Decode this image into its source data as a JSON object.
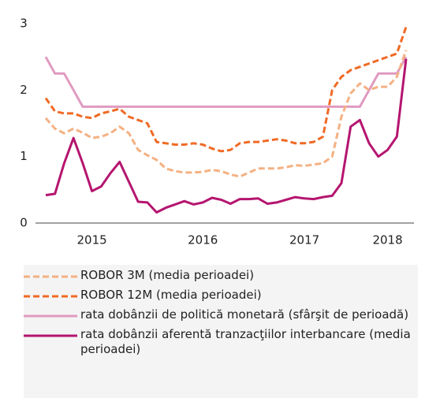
{
  "chart_data": {
    "type": "line",
    "categories": [
      null,
      null,
      null,
      null,
      null,
      "2015",
      null,
      null,
      null,
      null,
      null,
      null,
      null,
      null,
      null,
      null,
      null,
      "2016",
      null,
      null,
      null,
      null,
      null,
      null,
      null,
      null,
      null,
      null,
      "2017",
      null,
      null,
      null,
      null,
      null,
      null,
      null,
      null,
      "2018",
      null,
      null
    ],
    "ylim": [
      0,
      3
    ],
    "yticks": [
      0,
      1,
      2,
      3
    ],
    "grid": false,
    "series": [
      {
        "name": "ROBOR 3M (media perioadei)",
        "color": "#f4b183",
        "dashed": true,
        "values": [
          1.58,
          1.42,
          1.35,
          1.42,
          1.36,
          1.28,
          1.3,
          1.35,
          1.45,
          1.35,
          1.1,
          1.02,
          0.95,
          0.82,
          0.78,
          0.76,
          0.76,
          0.77,
          0.8,
          0.78,
          0.73,
          0.7,
          0.76,
          0.82,
          0.82,
          0.82,
          0.84,
          0.87,
          0.86,
          0.88,
          0.9,
          1.0,
          1.6,
          1.95,
          2.1,
          2.0,
          2.05,
          2.05,
          2.2,
          2.6
        ]
      },
      {
        "name": "ROBOR 12M (media perioadei)",
        "color": "#f06a25",
        "dashed": true,
        "values": [
          1.88,
          1.68,
          1.65,
          1.65,
          1.6,
          1.58,
          1.65,
          1.68,
          1.72,
          1.6,
          1.55,
          1.5,
          1.22,
          1.2,
          1.18,
          1.18,
          1.2,
          1.18,
          1.12,
          1.08,
          1.1,
          1.2,
          1.22,
          1.22,
          1.24,
          1.26,
          1.24,
          1.2,
          1.2,
          1.22,
          1.3,
          2.0,
          2.2,
          2.3,
          2.35,
          2.4,
          2.45,
          2.5,
          2.55,
          2.95
        ]
      },
      {
        "name": "rata dobânzii de politică monetară (sfârşit de perioadă)",
        "color": "#e09ac0",
        "dashed": false,
        "values": [
          2.5,
          2.25,
          2.25,
          2.0,
          1.75,
          1.75,
          1.75,
          1.75,
          1.75,
          1.75,
          1.75,
          1.75,
          1.75,
          1.75,
          1.75,
          1.75,
          1.75,
          1.75,
          1.75,
          1.75,
          1.75,
          1.75,
          1.75,
          1.75,
          1.75,
          1.75,
          1.75,
          1.75,
          1.75,
          1.75,
          1.75,
          1.75,
          1.75,
          1.75,
          1.75,
          2.0,
          2.25,
          2.25,
          2.25,
          2.5
        ]
      },
      {
        "name": "rata dobânzii aferentă tranzacţiilor interbancare (media perioadei)",
        "color": "#b5156f",
        "dashed": false,
        "values": [
          0.42,
          0.44,
          0.9,
          1.28,
          0.9,
          0.48,
          0.55,
          0.75,
          0.92,
          0.62,
          0.32,
          0.31,
          0.16,
          0.23,
          0.28,
          0.33,
          0.28,
          0.31,
          0.38,
          0.35,
          0.29,
          0.36,
          0.36,
          0.37,
          0.29,
          0.31,
          0.35,
          0.39,
          0.37,
          0.36,
          0.39,
          0.41,
          0.6,
          1.45,
          1.55,
          1.2,
          1.0,
          1.1,
          1.3,
          2.47
        ]
      }
    ]
  }
}
